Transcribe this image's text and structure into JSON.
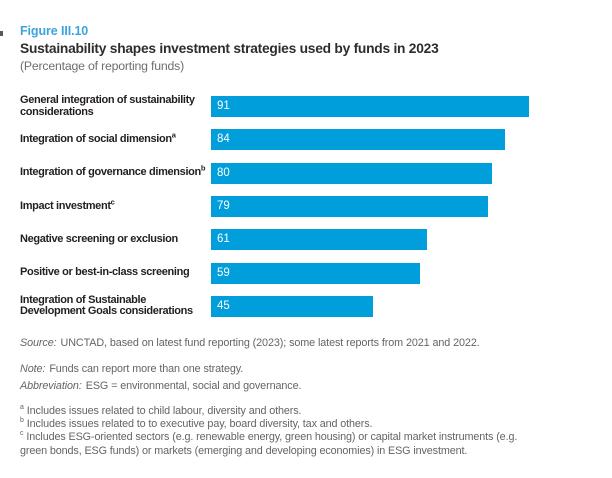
{
  "header": {
    "figure_label": "Figure III.10",
    "title": "Sustainability shapes investment strategies used by funds in 2023",
    "subtitle": "(Percentage of reporting funds)"
  },
  "chart_data": {
    "type": "bar",
    "orientation": "horizontal",
    "title": "Sustainability shapes investment strategies used by funds in 2023",
    "subtitle": "(Percentage of reporting funds)",
    "unit": "percent",
    "xlim": [
      0,
      100
    ],
    "grid": false,
    "legend": false,
    "value_labels_inside_bars": true,
    "bar_color": "#009edb",
    "value_label_color": "#ffffff",
    "categories": [
      {
        "lines": [
          "General integration of sustainability",
          "considerations"
        ],
        "sup": ""
      },
      {
        "lines": [
          "Integration of social dimension"
        ],
        "sup": "a"
      },
      {
        "lines": [
          "Integration of governance dimension"
        ],
        "sup": "b"
      },
      {
        "lines": [
          "Impact investment"
        ],
        "sup": "c"
      },
      {
        "lines": [
          "Negative screening or exclusion"
        ],
        "sup": ""
      },
      {
        "lines": [
          "Positive or best-in-class screening"
        ],
        "sup": ""
      },
      {
        "lines": [
          "Integration of Sustainable",
          "Development Goals considerations"
        ],
        "sup": ""
      }
    ],
    "values": [
      91,
      84,
      80,
      79,
      61,
      59,
      45
    ]
  },
  "notes": {
    "source_label": "Source:",
    "source_text": "UNCTAD, based on latest fund reporting (2023); some latest reports from 2021 and 2022.",
    "note_label": "Note:",
    "note_text": "Funds can report more than one strategy.",
    "abbreviation_label": "Abbreviation:",
    "abbreviation_text": "ESG = environmental, social and governance.",
    "footnotes": [
      {
        "marker": "a",
        "text": "Includes issues related to child labour, diversity and others."
      },
      {
        "marker": "b",
        "text": "Includes issues related to to executive pay, board diversity, tax and others."
      },
      {
        "marker": "c",
        "text": "Includes ESG-oriented sectors (e.g. renewable energy, green housing) or capital market instruments (e.g. green bonds, ESG funds) or markets (emerging and developing economies) in ESG investment."
      }
    ]
  },
  "colors": {
    "bar": "#009edb",
    "figure_label": "#3ba4dc",
    "title": "#2e2d2c",
    "subtitle": "#6d6e70",
    "category_label": "#231f20",
    "notes": "#636466",
    "background": "#ffffff"
  }
}
